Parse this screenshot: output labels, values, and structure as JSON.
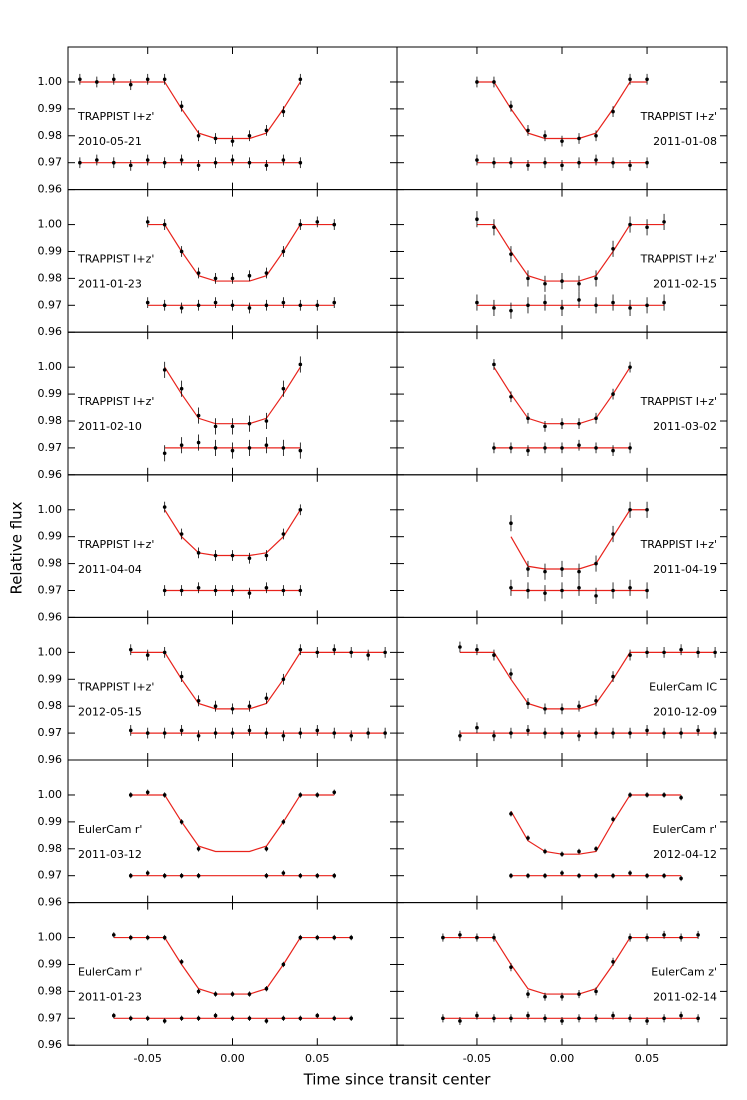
{
  "chart_data": {
    "type": "scatter",
    "xlabel": "Time since transit center",
    "ylabel": "Relative flux",
    "xlim": [
      -0.097,
      0.097
    ],
    "ylim": [
      0.96,
      1.013
    ],
    "xticks": [
      -0.05,
      {
        "value": 0,
        "label": "0.00"
      },
      0.05
    ],
    "yticks": [
      0.96,
      0.97,
      0.98,
      0.99,
      {
        "value": 1,
        "label": "1.00"
      }
    ],
    "point_color": "#000000",
    "model_color": "#e8231c",
    "residual_baseline": 0.97,
    "panels": [
      {
        "instrument": "TRAPPIST I+z'",
        "date": "2010-05-21",
        "error": 0.002,
        "x": [
          -0.09,
          -0.08,
          -0.07,
          -0.06,
          -0.05,
          -0.04,
          -0.03,
          -0.02,
          -0.01,
          0,
          0.01,
          0.02,
          0.03,
          0.04
        ],
        "model": [
          1,
          1,
          1,
          1,
          1,
          1,
          0.99,
          0.981,
          0.979,
          0.979,
          0.979,
          0.981,
          0.99,
          1
        ],
        "flux": [
          1.001,
          1.0,
          1.001,
          0.999,
          1.001,
          1.001,
          0.991,
          0.98,
          0.979,
          0.978,
          0.98,
          0.982,
          0.989,
          1.001
        ],
        "residuals": [
          0.97,
          0.971,
          0.97,
          0.969,
          0.971,
          0.97,
          0.971,
          0.969,
          0.97,
          0.971,
          0.97,
          0.969,
          0.971,
          0.97
        ]
      },
      {
        "instrument": "TRAPPIST I+z'",
        "date": "2011-01-08",
        "error": 0.002,
        "x": [
          -0.05,
          -0.04,
          -0.03,
          -0.02,
          -0.01,
          0,
          0.01,
          0.02,
          0.03,
          0.04,
          0.05
        ],
        "model": [
          1,
          1,
          0.99,
          0.981,
          0.979,
          0.979,
          0.979,
          0.981,
          0.99,
          1,
          1
        ],
        "flux": [
          1.0,
          1.0,
          0.991,
          0.982,
          0.98,
          0.978,
          0.979,
          0.98,
          0.989,
          1.001,
          1.001
        ],
        "residuals": [
          0.971,
          0.97,
          0.97,
          0.969,
          0.97,
          0.969,
          0.97,
          0.971,
          0.97,
          0.969,
          0.97
        ]
      },
      {
        "instrument": "TRAPPIST I+z'",
        "date": "2011-01-23",
        "error": 0.002,
        "x": [
          -0.05,
          -0.04,
          -0.03,
          -0.02,
          -0.01,
          0,
          0.01,
          0.02,
          0.03,
          0.04,
          0.05,
          0.06
        ],
        "model": [
          1,
          1,
          0.99,
          0.981,
          0.979,
          0.979,
          0.979,
          0.981,
          0.99,
          1,
          1,
          1
        ],
        "flux": [
          1.001,
          1.0,
          0.99,
          0.982,
          0.98,
          0.98,
          0.981,
          0.982,
          0.99,
          1.0,
          1.001,
          1.0
        ],
        "residuals": [
          0.971,
          0.97,
          0.969,
          0.97,
          0.971,
          0.97,
          0.969,
          0.97,
          0.971,
          0.97,
          0.97,
          0.971
        ]
      },
      {
        "instrument": "TRAPPIST I+z'",
        "date": "2011-02-15",
        "error": 0.003,
        "x": [
          -0.05,
          -0.04,
          -0.03,
          -0.02,
          -0.01,
          0,
          0.01,
          0.02,
          0.03,
          0.04,
          0.05,
          0.06
        ],
        "model": [
          1,
          1,
          0.99,
          0.981,
          0.979,
          0.979,
          0.979,
          0.981,
          0.99,
          1,
          1,
          1
        ],
        "flux": [
          1.002,
          0.999,
          0.989,
          0.98,
          0.978,
          0.979,
          0.978,
          0.98,
          0.991,
          1.0,
          0.999,
          1.001
        ],
        "residuals": [
          0.971,
          0.969,
          0.968,
          0.97,
          0.971,
          0.969,
          0.972,
          0.97,
          0.971,
          0.969,
          0.97,
          0.971
        ]
      },
      {
        "instrument": "TRAPPIST I+z'",
        "date": "2011-02-10",
        "error": 0.003,
        "x": [
          -0.04,
          -0.03,
          -0.02,
          -0.01,
          0,
          0.01,
          0.02,
          0.03,
          0.04
        ],
        "model": [
          1,
          0.99,
          0.981,
          0.979,
          0.979,
          0.979,
          0.981,
          0.99,
          1
        ],
        "flux": [
          0.999,
          0.992,
          0.982,
          0.978,
          0.978,
          0.979,
          0.98,
          0.992,
          1.001
        ],
        "residuals": [
          0.968,
          0.971,
          0.972,
          0.97,
          0.969,
          0.97,
          0.971,
          0.97,
          0.969
        ]
      },
      {
        "instrument": "TRAPPIST I+z'",
        "date": "2011-03-02",
        "error": 0.002,
        "x": [
          -0.04,
          -0.03,
          -0.02,
          -0.01,
          0,
          0.01,
          0.02,
          0.03,
          0.04
        ],
        "model": [
          1,
          0.99,
          0.981,
          0.979,
          0.979,
          0.979,
          0.981,
          0.99,
          1
        ],
        "flux": [
          1.001,
          0.989,
          0.981,
          0.978,
          0.979,
          0.979,
          0.981,
          0.99,
          1.0
        ],
        "residuals": [
          0.97,
          0.97,
          0.969,
          0.97,
          0.97,
          0.971,
          0.97,
          0.969,
          0.97
        ]
      },
      {
        "instrument": "TRAPPIST I+z'",
        "date": "2011-04-04",
        "error": 0.002,
        "x": [
          -0.04,
          -0.03,
          -0.02,
          -0.01,
          0,
          0.01,
          0.02,
          0.03,
          0.04
        ],
        "model": [
          1,
          0.99,
          0.984,
          0.983,
          0.983,
          0.983,
          0.984,
          0.99,
          1
        ],
        "flux": [
          1.001,
          0.991,
          0.984,
          0.983,
          0.983,
          0.982,
          0.983,
          0.991,
          1.0
        ],
        "residuals": [
          0.97,
          0.97,
          0.971,
          0.97,
          0.97,
          0.969,
          0.971,
          0.97,
          0.97
        ]
      },
      {
        "instrument": "TRAPPIST I+z'",
        "date": "2011-04-19",
        "error": 0.003,
        "x": [
          -0.03,
          -0.02,
          -0.01,
          0,
          0.01,
          0.02,
          0.03,
          0.04,
          0.05
        ],
        "model": [
          0.99,
          0.979,
          0.978,
          0.978,
          0.978,
          0.98,
          0.99,
          1,
          1
        ],
        "flux": [
          0.995,
          0.978,
          0.977,
          0.978,
          0.977,
          0.98,
          0.991,
          1.0,
          1.0
        ],
        "residuals": [
          0.971,
          0.97,
          0.969,
          0.97,
          0.971,
          0.968,
          0.97,
          0.971,
          0.97
        ]
      },
      {
        "instrument": "TRAPPIST I+z'",
        "date": "2012-05-15",
        "error": 0.002,
        "x": [
          -0.06,
          -0.05,
          -0.04,
          -0.03,
          -0.02,
          -0.01,
          0,
          0.01,
          0.02,
          0.03,
          0.04,
          0.05,
          0.06,
          0.07,
          0.08,
          0.09
        ],
        "model": [
          1,
          1,
          1,
          0.99,
          0.981,
          0.979,
          0.979,
          0.979,
          0.981,
          0.99,
          1,
          1,
          1,
          1,
          1,
          1
        ],
        "flux": [
          1.001,
          0.999,
          1.0,
          0.991,
          0.982,
          0.98,
          0.979,
          0.98,
          0.983,
          0.99,
          1.001,
          1.0,
          1.001,
          1.0,
          0.999,
          1.0
        ],
        "residuals": [
          0.971,
          0.97,
          0.97,
          0.971,
          0.969,
          0.97,
          0.97,
          0.971,
          0.97,
          0.969,
          0.97,
          0.971,
          0.97,
          0.969,
          0.97,
          0.97
        ]
      },
      {
        "instrument": "EulerCam IC",
        "date": "2010-12-09",
        "error": 0.002,
        "x": [
          -0.06,
          -0.05,
          -0.04,
          -0.03,
          -0.02,
          -0.01,
          0,
          0.01,
          0.02,
          0.03,
          0.04,
          0.05,
          0.06,
          0.07,
          0.08,
          0.09
        ],
        "model": [
          1,
          1,
          1,
          0.99,
          0.981,
          0.979,
          0.979,
          0.979,
          0.981,
          0.99,
          1,
          1,
          1,
          1,
          1,
          1
        ],
        "flux": [
          1.002,
          1.001,
          0.999,
          0.992,
          0.981,
          0.979,
          0.979,
          0.98,
          0.982,
          0.991,
          0.999,
          1.0,
          1.0,
          1.001,
          1.0,
          1.0
        ],
        "residuals": [
          0.969,
          0.972,
          0.969,
          0.97,
          0.971,
          0.97,
          0.97,
          0.969,
          0.97,
          0.97,
          0.97,
          0.971,
          0.97,
          0.97,
          0.971,
          0.97
        ]
      },
      {
        "instrument": "EulerCam r'",
        "date": "2011-03-12",
        "error": 0.001,
        "x": [
          -0.06,
          -0.05,
          -0.04,
          -0.03,
          -0.02,
          -0.01,
          0,
          0.01,
          0.02,
          0.03,
          0.04,
          0.05,
          0.06
        ],
        "model": [
          1,
          1,
          1,
          0.99,
          0.981,
          0.979,
          0.979,
          0.979,
          0.981,
          0.99,
          1,
          1,
          1
        ],
        "flux": [
          1.0,
          1.001,
          1.0,
          0.99,
          0.98,
          null,
          null,
          null,
          0.98,
          0.99,
          1.0,
          1.0,
          1.001
        ],
        "residuals": [
          0.97,
          0.971,
          0.97,
          0.97,
          0.97,
          null,
          null,
          null,
          0.97,
          0.971,
          0.97,
          0.97,
          0.97
        ]
      },
      {
        "instrument": "EulerCam r'",
        "date": "2012-04-12",
        "error": 0.001,
        "x": [
          -0.03,
          -0.02,
          -0.01,
          0,
          0.01,
          0.02,
          0.03,
          0.04,
          0.05,
          0.06,
          0.07
        ],
        "model": [
          0.994,
          0.983,
          0.979,
          0.978,
          0.978,
          0.979,
          0.99,
          1,
          1,
          1,
          1
        ],
        "flux": [
          0.993,
          0.984,
          0.979,
          0.978,
          0.979,
          0.98,
          0.991,
          1.0,
          1.0,
          1.0,
          0.999
        ],
        "residuals": [
          0.97,
          0.97,
          0.97,
          0.971,
          0.97,
          0.97,
          0.97,
          0.971,
          0.97,
          0.97,
          0.969
        ]
      },
      {
        "instrument": "EulerCam r'",
        "date": "2011-01-23",
        "error": 0.001,
        "x": [
          -0.07,
          -0.06,
          -0.05,
          -0.04,
          -0.03,
          -0.02,
          -0.01,
          0,
          0.01,
          0.02,
          0.03,
          0.04,
          0.05,
          0.06,
          0.07
        ],
        "model": [
          1,
          1,
          1,
          1,
          0.99,
          0.981,
          0.979,
          0.979,
          0.979,
          0.981,
          0.99,
          1,
          1,
          1,
          1
        ],
        "flux": [
          1.001,
          1.0,
          1.0,
          1.0,
          0.991,
          0.98,
          0.979,
          0.979,
          0.979,
          0.981,
          0.99,
          1.0,
          1.0,
          1.0,
          1.0
        ],
        "residuals": [
          0.971,
          0.97,
          0.97,
          0.969,
          0.97,
          0.97,
          0.971,
          0.97,
          0.97,
          0.969,
          0.97,
          0.97,
          0.971,
          0.97,
          0.97
        ]
      },
      {
        "instrument": "EulerCam z'",
        "date": "2011-02-14",
        "error": 0.0015,
        "x": [
          -0.07,
          -0.06,
          -0.05,
          -0.04,
          -0.03,
          -0.02,
          -0.01,
          0,
          0.01,
          0.02,
          0.03,
          0.04,
          0.05,
          0.06,
          0.07,
          0.08
        ],
        "model": [
          1,
          1,
          1,
          1,
          0.99,
          0.981,
          0.979,
          0.979,
          0.979,
          0.981,
          0.99,
          1,
          1,
          1,
          1,
          1
        ],
        "flux": [
          1.0,
          1.001,
          1.0,
          1.0,
          0.989,
          0.979,
          0.978,
          0.978,
          0.979,
          0.98,
          0.991,
          1.0,
          1.0,
          1.001,
          1.0,
          1.001
        ],
        "residuals": [
          0.97,
          0.969,
          0.971,
          0.97,
          0.97,
          0.971,
          0.97,
          0.969,
          0.97,
          0.97,
          0.971,
          0.97,
          0.969,
          0.97,
          0.971,
          0.97
        ]
      }
    ]
  }
}
